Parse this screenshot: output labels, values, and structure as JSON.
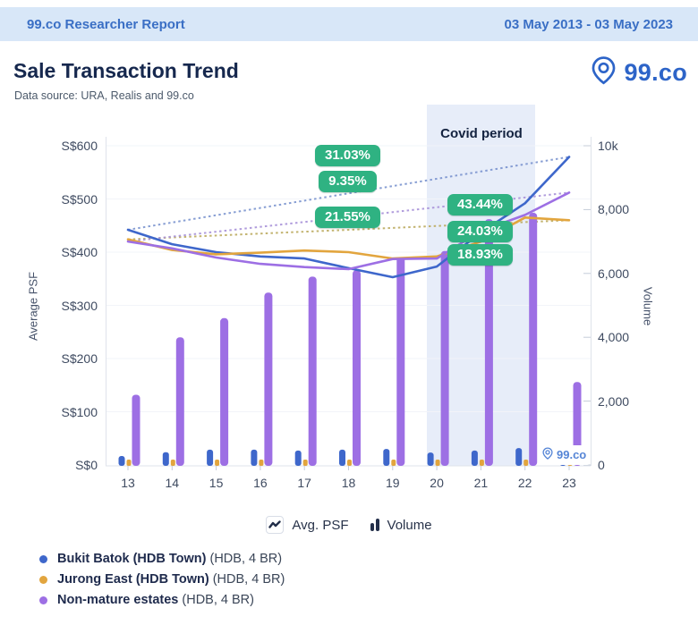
{
  "header": {
    "left": "99.co Researcher Report",
    "right": "03 May 2013 - 03 May 2023"
  },
  "title": "Sale Transaction Trend",
  "subtitle": "Data source: URA, Realis and 99.co",
  "brand": {
    "logo_text": "99.co"
  },
  "watermark": {
    "text": "99.co"
  },
  "colors": {
    "header_bg": "#d8e7f8",
    "header_text": "#3a6fc5",
    "brand_blue": "#2d64c8",
    "badge_green": "#2fb282",
    "covid_region": "#e4ebf8",
    "series_blue": "#3e67cb",
    "series_orange": "#e2a53e",
    "series_purple": "#9d6fe4"
  },
  "mini_legend": [
    {
      "icon": "line-icon",
      "label": "Avg. PSF"
    },
    {
      "icon": "bars-icon",
      "label": "Volume"
    }
  ],
  "series_legend": [
    {
      "color": "#3e67cb",
      "name": "Bukit Batok (HDB Town)",
      "suffix": "(HDB, 4 BR)"
    },
    {
      "color": "#e2a53e",
      "name": "Jurong East (HDB Town)",
      "suffix": "(HDB, 4 BR)"
    },
    {
      "color": "#9d6fe4",
      "name": "Non-mature estates",
      "suffix": "(HDB, 4 BR)"
    }
  ],
  "chart_data": {
    "type": "line+bar",
    "x_labels": [
      "13",
      "14",
      "15",
      "16",
      "17",
      "18",
      "19",
      "20",
      "21",
      "22",
      "23"
    ],
    "left_axis": {
      "title": "Average PSF",
      "tick_labels": [
        "S$600",
        "S$500",
        "S$400",
        "S$300",
        "S$200",
        "S$100",
        "S$0"
      ],
      "tick_values": [
        600,
        500,
        400,
        300,
        200,
        100,
        0
      ],
      "range": [
        0,
        600
      ]
    },
    "right_axis": {
      "title": "Volume",
      "tick_labels": [
        "10k",
        "8,000",
        "6,000",
        "4,000",
        "2,000",
        "0"
      ],
      "tick_values": [
        10000,
        8000,
        6000,
        4000,
        2000,
        0
      ],
      "range": [
        0,
        10000
      ]
    },
    "psf_series": [
      {
        "name": "Bukit Batok (HDB Town)",
        "color": "#3e67cb",
        "trend_color": "#7b94cf",
        "values": [
          442,
          415,
          400,
          392,
          388,
          370,
          353,
          373,
          437,
          492,
          579
        ]
      },
      {
        "name": "Jurong East (HDB Town)",
        "color": "#e2a53e",
        "trend_color": "#bcab60",
        "values": [
          424,
          404,
          396,
          399,
          403,
          400,
          388,
          392,
          420,
          465,
          460
        ]
      },
      {
        "name": "Non-mature estates",
        "color": "#9d6fe4",
        "trend_color": "#a892d9",
        "values": [
          420,
          407,
          390,
          378,
          372,
          368,
          387,
          388,
          440,
          470,
          512
        ]
      }
    ],
    "volume_series": [
      {
        "name": "Bukit Batok (HDB Town)",
        "color": "#3e67cb",
        "values": [
          280,
          400,
          480,
          480,
          450,
          480,
          500,
          390,
          450,
          530,
          420
        ]
      },
      {
        "name": "Jurong East (HDB Town)",
        "color": "#e2a53e",
        "values": [
          100,
          120,
          130,
          120,
          110,
          130,
          120,
          100,
          120,
          140,
          90
        ]
      },
      {
        "name": "Non-mature estates",
        "color": "#9d6fe4",
        "values": [
          2200,
          4000,
          4600,
          5400,
          5900,
          6100,
          6500,
          6700,
          7700,
          7900,
          2600
        ]
      }
    ],
    "annotations": {
      "covid_region": {
        "label": "Covid period",
        "x_from": "20",
        "x_to": "22"
      },
      "trend_badges_left": [
        "31.03%",
        "9.35%",
        "21.55%"
      ],
      "trend_badges_right": [
        "43.44%",
        "24.03%",
        "18.93%"
      ]
    }
  }
}
